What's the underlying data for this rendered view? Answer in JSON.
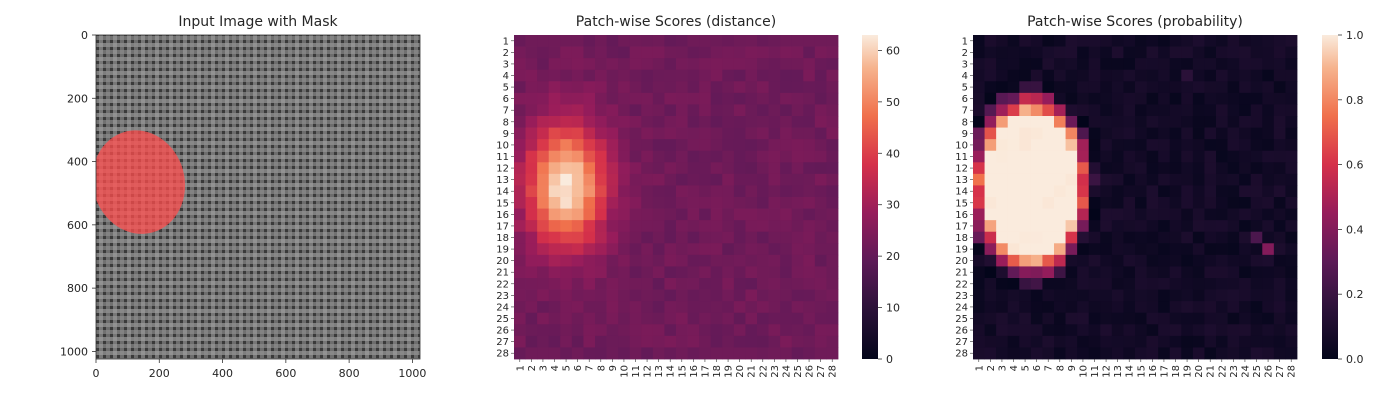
{
  "chart_data": [
    {
      "type": "image",
      "title": "Input Image with Mask",
      "x_ticks": [
        0,
        200,
        400,
        600,
        800,
        1000
      ],
      "y_ticks": [
        0,
        200,
        400,
        600,
        800,
        1000
      ],
      "xlim": [
        0,
        1024
      ],
      "ylim": [
        1024,
        0
      ],
      "mask_color": "#ff4d4d",
      "fabric_color": "#6e6e6e",
      "mask_region": {
        "cx": 135,
        "cy": 465,
        "rx": 145,
        "ry": 165
      }
    },
    {
      "type": "heatmap",
      "title": "Patch-wise Scores (distance)",
      "rows": [
        "1",
        "2",
        "3",
        "4",
        "5",
        "6",
        "7",
        "8",
        "9",
        "10",
        "11",
        "12",
        "13",
        "14",
        "15",
        "16",
        "17",
        "18",
        "19",
        "20",
        "21",
        "22",
        "23",
        "24",
        "25",
        "26",
        "27",
        "28"
      ],
      "cols": [
        "1",
        "2",
        "3",
        "4",
        "5",
        "6",
        "7",
        "8",
        "9",
        "10",
        "11",
        "12",
        "13",
        "14",
        "15",
        "16",
        "17",
        "18",
        "19",
        "20",
        "21",
        "22",
        "23",
        "24",
        "25",
        "26",
        "27",
        "28"
      ],
      "vmin": 0,
      "vmax": 63,
      "colorbar_ticks": [
        0,
        10,
        20,
        30,
        40,
        50,
        60
      ],
      "colormap": "rocket",
      "background_value": 22,
      "hotspot": {
        "center_row": 13.5,
        "center_col": 5,
        "peak": 63,
        "radius_rows": 5.5,
        "radius_cols": 3.5
      },
      "edge_value": 20
    },
    {
      "type": "heatmap",
      "title": "Patch-wise Scores (probability)",
      "rows": [
        "1",
        "2",
        "3",
        "4",
        "5",
        "6",
        "7",
        "8",
        "9",
        "10",
        "11",
        "12",
        "13",
        "14",
        "15",
        "16",
        "17",
        "18",
        "19",
        "20",
        "21",
        "22",
        "23",
        "24",
        "25",
        "26",
        "27",
        "28"
      ],
      "cols": [
        "1",
        "2",
        "3",
        "4",
        "5",
        "6",
        "7",
        "8",
        "9",
        "10",
        "11",
        "12",
        "13",
        "14",
        "15",
        "16",
        "17",
        "18",
        "19",
        "20",
        "21",
        "22",
        "23",
        "24",
        "25",
        "26",
        "27",
        "28"
      ],
      "vmin": 0.0,
      "vmax": 1.0,
      "colorbar_ticks": [
        "0.0",
        "0.2",
        "0.4",
        "0.6",
        "0.8",
        "1.0"
      ],
      "colormap": "rocket",
      "background_value": 0.02,
      "hotspot": {
        "center_row": 13.5,
        "center_col": 5.5,
        "peak": 1.0,
        "radius_rows": 8.5,
        "radius_cols": 5.5
      },
      "extra_spots": [
        {
          "row": 19,
          "col": 26,
          "value": 0.4
        },
        {
          "row": 18,
          "col": 25,
          "value": 0.25
        },
        {
          "row": 4,
          "col": 19,
          "value": 0.15
        }
      ]
    }
  ]
}
